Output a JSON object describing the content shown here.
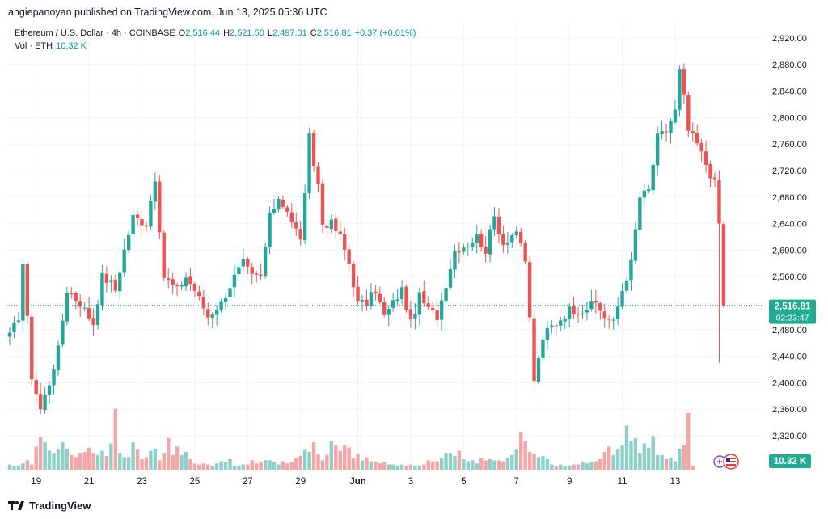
{
  "header": {
    "published_line": "angiepanoyan published on TradingView.com, Jun 13, 2025 05:36 UTC"
  },
  "legend": {
    "symbol_line": "Ethereum / U.S. Dollar · 4h · COINBASE",
    "o_label": "O",
    "o_value": "2,516.44",
    "h_label": "H",
    "h_value": "2,521.50",
    "l_label": "L",
    "l_value": "2,497.01",
    "c_label": "C",
    "c_value": "2,516.81",
    "change": "+0.37 (+0.01%)",
    "vol_label": "Vol · ETH",
    "vol_value": "10.32 K"
  },
  "footer": {
    "brand": "TradingView"
  },
  "colors": {
    "up": "#26a69a",
    "down": "#ef5350",
    "vol_up": "#8ed0c8",
    "vol_down": "#f4a5a4",
    "grid": "#f0f3fa",
    "price_line": "#26a69a",
    "price_badge": "#22ab94"
  },
  "icons": [
    "tradingview-logo-icon",
    "event-flag-icon"
  ],
  "chart_data": {
    "type": "candlestick",
    "timeframe": "4h",
    "y_ticks": [
      "2,920.00",
      "2,880.00",
      "2,840.00",
      "2,800.00",
      "2,760.00",
      "2,720.00",
      "2,680.00",
      "2,640.00",
      "2,600.00",
      "2,560.00",
      "2,520.00",
      "2,480.00",
      "2,440.00",
      "2,400.00",
      "2,360.00",
      "2,320.00"
    ],
    "ylim": [
      2282,
      2942
    ],
    "x_ticks": [
      "19",
      "21",
      "23",
      "25",
      "27",
      "29",
      "Jun",
      "3",
      "5",
      "7",
      "9",
      "11",
      "13"
    ],
    "last_price_label": "2,516.81",
    "countdown_label": "02:23:47",
    "volume_label": "10.32 K",
    "grid": true,
    "anchors": [
      [
        0,
        2470
      ],
      [
        2,
        2500
      ],
      [
        3,
        2580
      ],
      [
        5,
        2410
      ],
      [
        7,
        2360
      ],
      [
        9,
        2400
      ],
      [
        11,
        2450
      ],
      [
        13,
        2540
      ],
      [
        16,
        2520
      ],
      [
        19,
        2490
      ],
      [
        21,
        2560
      ],
      [
        23,
        2550
      ],
      [
        24,
        2540
      ],
      [
        26,
        2600
      ],
      [
        28,
        2650
      ],
      [
        31,
        2640
      ],
      [
        33,
        2710
      ],
      [
        34,
        2620
      ],
      [
        35,
        2560
      ],
      [
        38,
        2540
      ],
      [
        40,
        2560
      ],
      [
        42,
        2540
      ],
      [
        45,
        2500
      ],
      [
        48,
        2520
      ],
      [
        51,
        2560
      ],
      [
        53,
        2580
      ],
      [
        55,
        2560
      ],
      [
        57,
        2560
      ],
      [
        59,
        2650
      ],
      [
        61,
        2680
      ],
      [
        63,
        2660
      ],
      [
        64,
        2640
      ],
      [
        66,
        2620
      ],
      [
        67,
        2680
      ],
      [
        68,
        2770
      ],
      [
        69,
        2730
      ],
      [
        70,
        2700
      ],
      [
        71,
        2640
      ],
      [
        73,
        2640
      ],
      [
        75,
        2620
      ],
      [
        77,
        2580
      ],
      [
        79,
        2520
      ],
      [
        81,
        2520
      ],
      [
        83,
        2540
      ],
      [
        85,
        2500
      ],
      [
        87,
        2520
      ],
      [
        89,
        2540
      ],
      [
        91,
        2490
      ],
      [
        93,
        2530
      ],
      [
        95,
        2510
      ],
      [
        97,
        2500
      ],
      [
        99,
        2550
      ],
      [
        101,
        2600
      ],
      [
        104,
        2610
      ],
      [
        106,
        2620
      ],
      [
        108,
        2600
      ],
      [
        110,
        2650
      ],
      [
        112,
        2610
      ],
      [
        115,
        2630
      ],
      [
        117,
        2580
      ],
      [
        118,
        2500
      ],
      [
        119,
        2400
      ],
      [
        120,
        2440
      ],
      [
        122,
        2480
      ],
      [
        124,
        2490
      ],
      [
        127,
        2510
      ],
      [
        130,
        2510
      ],
      [
        133,
        2520
      ],
      [
        135,
        2500
      ],
      [
        137,
        2490
      ],
      [
        139,
        2540
      ],
      [
        141,
        2580
      ],
      [
        143,
        2680
      ],
      [
        145,
        2690
      ],
      [
        147,
        2770
      ],
      [
        149,
        2780
      ],
      [
        151,
        2810
      ],
      [
        152,
        2870
      ],
      [
        153,
        2830
      ],
      [
        154,
        2780
      ],
      [
        156,
        2760
      ],
      [
        158,
        2730
      ],
      [
        160,
        2700
      ],
      [
        161,
        2640
      ],
      [
        162,
        2516
      ]
    ],
    "volume": [
      5,
      4,
      4,
      6,
      9,
      5,
      22,
      31,
      26,
      18,
      16,
      19,
      26,
      20,
      14,
      12,
      16,
      17,
      21,
      16,
      14,
      18,
      13,
      25,
      58,
      16,
      12,
      12,
      26,
      19,
      10,
      12,
      18,
      20,
      9,
      16,
      30,
      14,
      22,
      14,
      17,
      10,
      6,
      5,
      6,
      5,
      4,
      6,
      8,
      7,
      10,
      4,
      4,
      5,
      5,
      9,
      6,
      7,
      9,
      9,
      7,
      5,
      8,
      6,
      7,
      11,
      13,
      19,
      17,
      26,
      15,
      9,
      14,
      27,
      23,
      18,
      23,
      21,
      11,
      15,
      9,
      12,
      8,
      8,
      6,
      7,
      5,
      5,
      4,
      5,
      4,
      5,
      4,
      4,
      5,
      9,
      8,
      8,
      11,
      16,
      16,
      13,
      18,
      10,
      8,
      9,
      6,
      11,
      9,
      10,
      9,
      9,
      8,
      11,
      14,
      19,
      36,
      27,
      17,
      15,
      12,
      13,
      10,
      5,
      3,
      5,
      3,
      4,
      5,
      5,
      7,
      6,
      7,
      8,
      10,
      17,
      22,
      14,
      19,
      23,
      42,
      27,
      30,
      16,
      25,
      21,
      32,
      14,
      14,
      10,
      11,
      8,
      20,
      23,
      54,
      4
    ]
  }
}
